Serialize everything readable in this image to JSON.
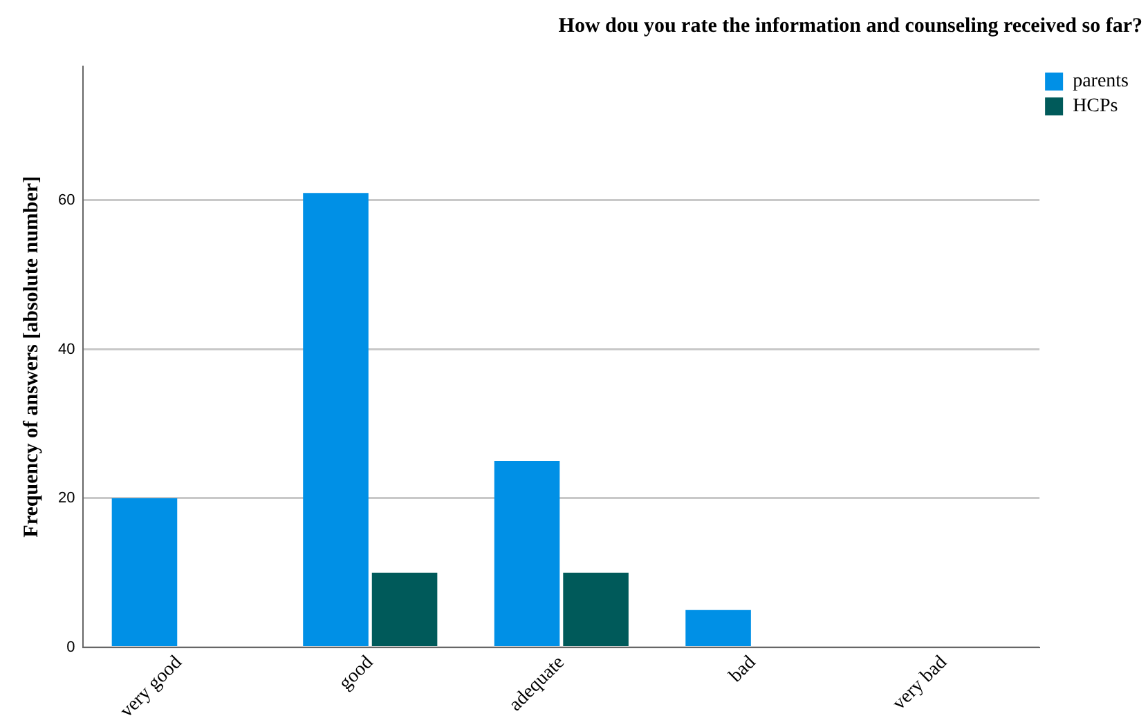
{
  "chart_data": {
    "type": "bar",
    "title": "How dou you rate the information and counseling received so far?",
    "ylabel": "Frequency of answers [absolute number]",
    "categories": [
      "very good",
      "good",
      "adequate",
      "bad",
      "very bad"
    ],
    "series": [
      {
        "name": "parents",
        "color": "#0090e6",
        "values": [
          20,
          61,
          25,
          5,
          0
        ]
      },
      {
        "name": "HCPs",
        "color": "#005a5a",
        "values": [
          0,
          10,
          10,
          0,
          0
        ]
      }
    ],
    "ylim": [
      0,
      78
    ],
    "yticks": [
      0,
      20,
      40,
      60
    ],
    "grid": "y",
    "legend": "top right"
  }
}
